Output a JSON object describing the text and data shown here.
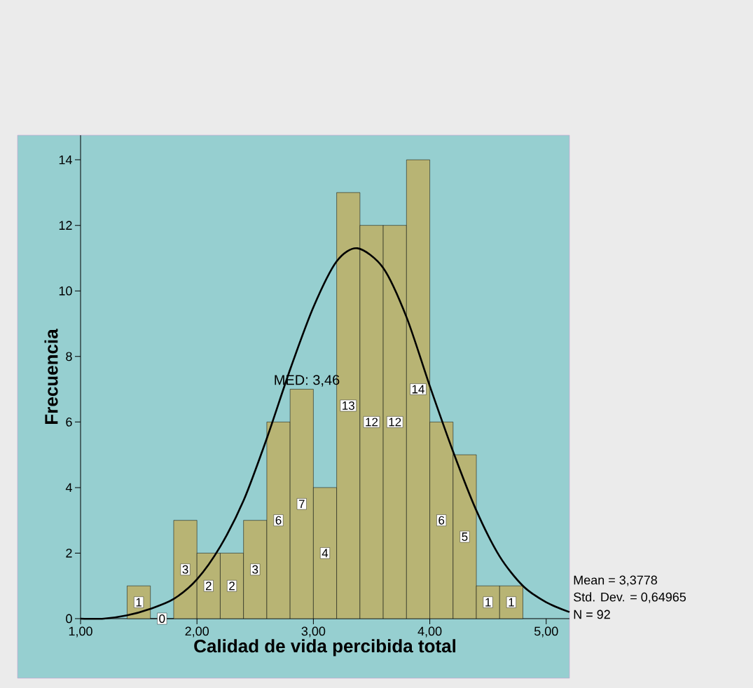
{
  "chart_data": {
    "type": "histogram",
    "xlabel": "Calidad de vida percibida total",
    "ylabel": "Frecuencia",
    "bins": [
      1.4,
      1.6,
      1.8,
      2.0,
      2.2,
      2.4,
      2.6,
      2.8,
      3.0,
      3.2,
      3.4,
      3.6,
      3.8,
      4.0,
      4.2,
      4.4,
      4.6,
      4.8
    ],
    "values": [
      1,
      0,
      3,
      2,
      2,
      3,
      6,
      7,
      4,
      13,
      12,
      12,
      14,
      6,
      5,
      1,
      1
    ],
    "color": "#b8b474",
    "value_labels": [
      "1",
      "0",
      "3",
      "2",
      "2",
      "3",
      "6",
      "7",
      "4",
      "13",
      "12",
      "12",
      "14",
      "6",
      "5",
      "1",
      "1"
    ],
    "series": [
      {
        "type": "line",
        "color": "#000000",
        "x": [
          1.0,
          1.2,
          1.4,
          1.6,
          1.8,
          2.0,
          2.2,
          2.4,
          2.6,
          2.8,
          3.0,
          3.2,
          3.38,
          3.6,
          3.8,
          4.0,
          4.2,
          4.4,
          4.6,
          4.8,
          5.0,
          5.2
        ],
        "values": [
          0.0,
          0.0,
          0.1,
          0.3,
          0.6,
          1.2,
          2.2,
          3.6,
          5.5,
          7.6,
          9.5,
          10.9,
          11.3,
          10.7,
          9.2,
          7.1,
          5.1,
          3.3,
          1.9,
          1.0,
          0.5,
          0.2
        ]
      }
    ],
    "xlim": [
      1.0,
      5.2
    ],
    "ylim": [
      0,
      14.75
    ],
    "xticks": [
      {
        "value": 1,
        "label": "1,00"
      },
      {
        "value": 2,
        "label": "2,00"
      },
      {
        "value": 3,
        "label": "3,00"
      },
      {
        "value": 4,
        "label": "4,00"
      },
      {
        "value": 5,
        "label": "5,00"
      }
    ],
    "yticks": [
      0,
      2,
      4,
      6,
      8,
      10,
      12,
      14
    ],
    "annotations": [
      "MED: 3,46",
      "Mean = 3,3778",
      "Std. Dev. = 0,64965",
      "N = 92"
    ]
  }
}
